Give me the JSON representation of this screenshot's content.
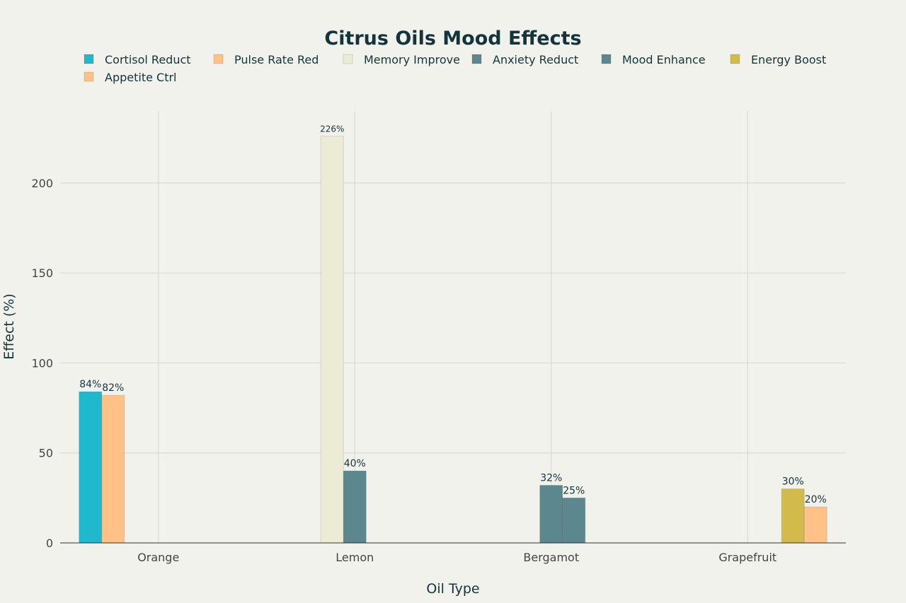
{
  "chart_data": {
    "type": "bar",
    "title": "Citrus Oils Mood Effects",
    "xlabel": "Oil Type",
    "ylabel": "Effect (%)",
    "categories": [
      "Orange",
      "Lemon",
      "Bergamot",
      "Grapefruit"
    ],
    "ylim": [
      0,
      240
    ],
    "yticks": [
      0,
      50,
      100,
      150,
      200
    ],
    "grid": true,
    "legend_position": "top",
    "series": [
      {
        "name": "Cortisol Reduct",
        "color": "#1fb8cd",
        "values": [
          84,
          null,
          null,
          null
        ],
        "labels": [
          "84%",
          null,
          null,
          null
        ]
      },
      {
        "name": "Pulse Rate Red",
        "color": "#ffc185",
        "values": [
          82,
          null,
          null,
          null
        ],
        "labels": [
          "82%",
          null,
          null,
          null
        ]
      },
      {
        "name": "Memory Improve",
        "color": "#ecebd5",
        "values": [
          null,
          226,
          null,
          null
        ],
        "labels": [
          null,
          "226%",
          null,
          null
        ]
      },
      {
        "name": "Anxiety Reduct",
        "color": "#5d878f",
        "values": [
          null,
          40,
          32,
          null
        ],
        "labels": [
          null,
          "40%",
          "32%",
          null
        ]
      },
      {
        "name": "Mood Enhance",
        "color": "#5d878f",
        "values": [
          null,
          null,
          25,
          null
        ],
        "labels": [
          null,
          null,
          "25%",
          null
        ]
      },
      {
        "name": "Energy Boost",
        "color": "#d2ba4c",
        "values": [
          null,
          null,
          null,
          30
        ],
        "labels": [
          null,
          null,
          null,
          "30%"
        ]
      },
      {
        "name": "Appetite Ctrl",
        "color": "#ffc185",
        "values": [
          null,
          null,
          null,
          20
        ],
        "labels": [
          null,
          null,
          null,
          "20%"
        ]
      }
    ]
  }
}
